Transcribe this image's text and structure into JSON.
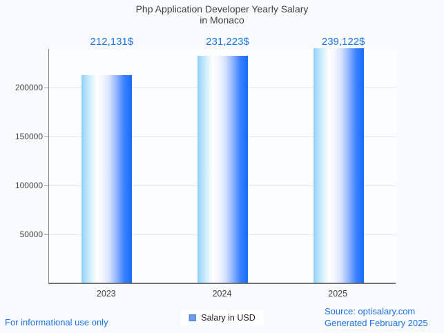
{
  "title": {
    "line1": "Php Application Developer Yearly Salary",
    "line2": "in Monaco"
  },
  "chart_data": {
    "type": "bar",
    "categories": [
      "2023",
      "2024",
      "2025"
    ],
    "series": [
      {
        "name": "Salary in USD",
        "values": [
          212131,
          231223,
          239122
        ]
      }
    ],
    "value_labels": [
      "212,131$",
      "231,223$",
      "239,122$"
    ],
    "title": "Php Application Developer Yearly Salary in Monaco",
    "xlabel": "",
    "ylabel": "",
    "ylim": [
      0,
      240000
    ],
    "yticks": [
      50000,
      100000,
      150000,
      200000
    ],
    "ytick_labels": [
      "50000",
      "100000",
      "150000",
      "200000"
    ],
    "grid": true,
    "legend_position": "bottom"
  },
  "legend": {
    "label": "Salary in USD",
    "marker_color": "#6d9eeb",
    "marker_border_color": "#3f7ad6"
  },
  "footer": {
    "left_note": "For informational use only",
    "source_line1": "Source: optisalary.com",
    "source_line2": "Generated February 2025"
  },
  "colors": {
    "accent_blue": "#1a73e8",
    "bar_gradient_left": "#8fd0f8",
    "bar_gradient_middle": "#ffffff",
    "bar_gradient_right": "#176bff",
    "background": "#f8fafc",
    "axis": "#6f7377",
    "gridline": "#e2e5e9"
  }
}
